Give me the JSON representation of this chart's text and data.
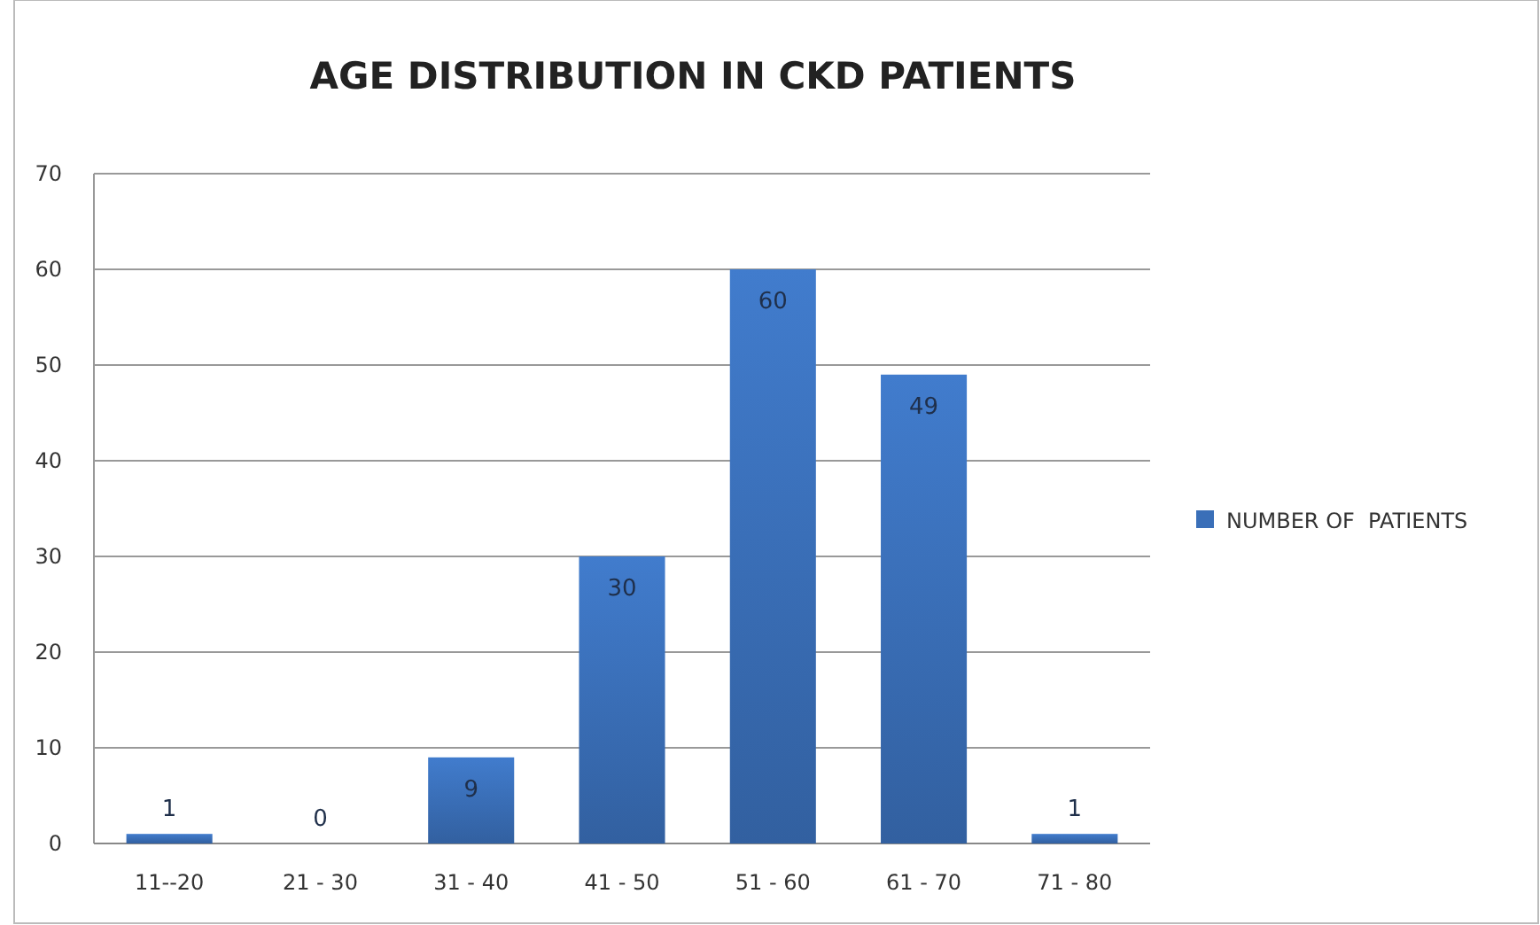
{
  "chart_data": {
    "type": "bar",
    "title": "AGE DISTRIBUTION IN CKD PATIENTS",
    "categories": [
      "11--20",
      "21 - 30",
      "31 - 40",
      "41 - 50",
      "51 - 60",
      "61 - 70",
      "71 - 80"
    ],
    "series": [
      {
        "name": "NUMBER OF  PATIENTS",
        "color": "#3a6fb8",
        "values": [
          1,
          0,
          9,
          30,
          60,
          49,
          1
        ]
      }
    ],
    "ylim": [
      0,
      70
    ],
    "yticks": [
      0,
      10,
      20,
      30,
      40,
      50,
      60,
      70
    ],
    "grid": "y",
    "legend": "right",
    "data_labels": true
  }
}
